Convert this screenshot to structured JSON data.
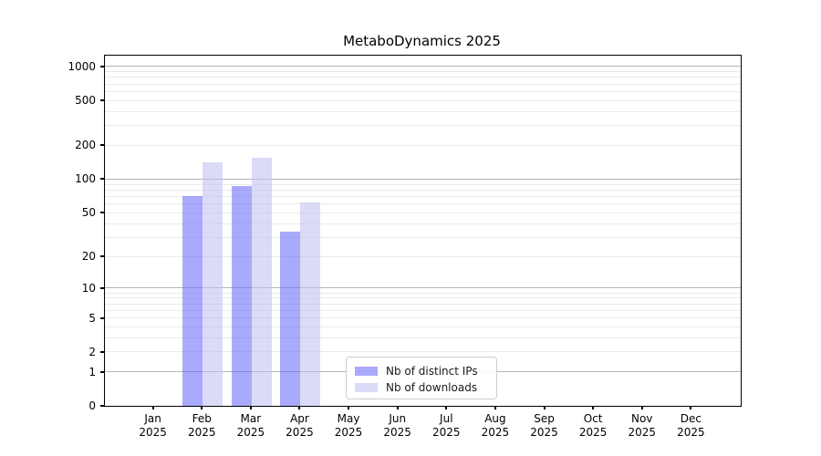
{
  "chart_data": {
    "type": "bar",
    "title": "MetaboDynamics 2025",
    "categories": [
      "Jan",
      "Feb",
      "Mar",
      "Apr",
      "May",
      "Jun",
      "Jul",
      "Aug",
      "Sep",
      "Oct",
      "Nov",
      "Dec"
    ],
    "year_label": "2025",
    "series": [
      {
        "name": "Nb of distinct IPs",
        "color": "#6464fa",
        "alpha": 0.55,
        "values": [
          0,
          71,
          86,
          34,
          0,
          0,
          0,
          0,
          0,
          0,
          0,
          0
        ]
      },
      {
        "name": "Nb of downloads",
        "color": "#bebef0",
        "alpha": 0.55,
        "values": [
          0,
          141,
          155,
          62,
          0,
          0,
          0,
          0,
          0,
          0,
          0,
          0
        ]
      }
    ],
    "y_scale": "log10(1+x)",
    "y_ticks": [
      0,
      1,
      2,
      5,
      10,
      20,
      50,
      100,
      200,
      500,
      1000
    ],
    "ylim": [
      0,
      1248
    ],
    "grid": "horizontal log gridlines, minor + major",
    "legend_position": "bottom-center",
    "colors": {
      "grid_major": "#b5b5b5",
      "grid_minor": "#eaeaea",
      "axis": "#000000"
    }
  }
}
